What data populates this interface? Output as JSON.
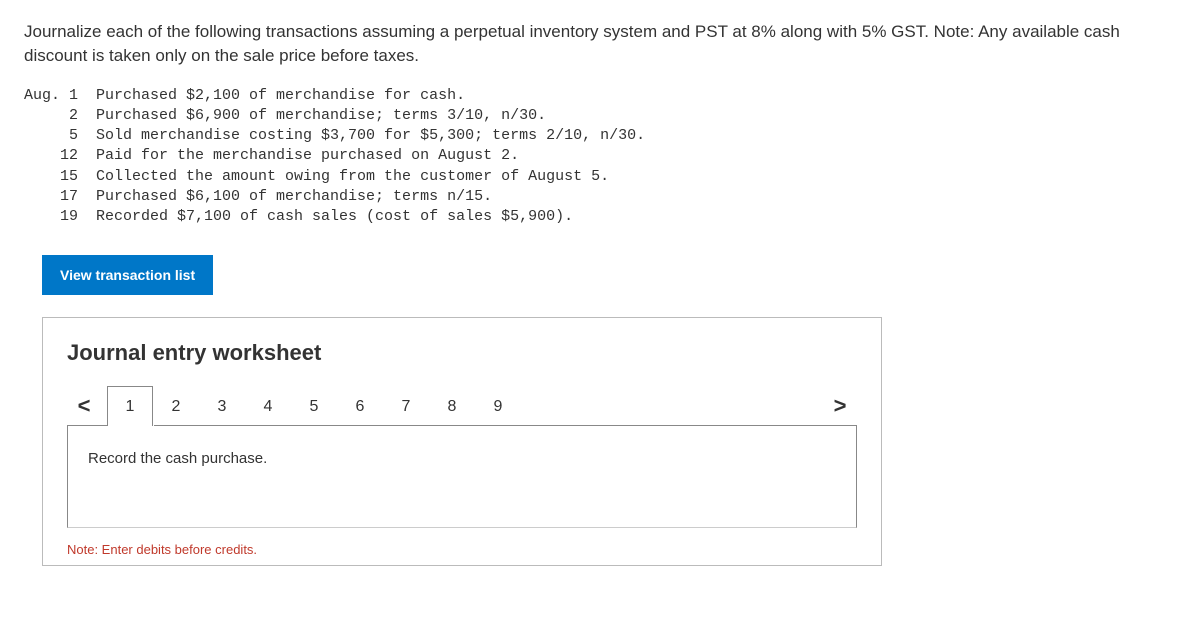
{
  "instructions": "Journalize each of the following transactions assuming a perpetual inventory system and PST at 8% along with 5% GST. Note: Any available cash discount is taken only on the sale price before taxes.",
  "transactions_block": "Aug. 1  Purchased $2,100 of merchandise for cash.\n     2  Purchased $6,900 of merchandise; terms 3/10, n/30.\n     5  Sold merchandise costing $3,700 for $5,300; terms 2/10, n/30.\n    12  Paid for the merchandise purchased on August 2.\n    15  Collected the amount owing from the customer of August 5.\n    17  Purchased $6,100 of merchandise; terms n/15.\n    19  Recorded $7,100 of cash sales (cost of sales $5,900).",
  "view_button_label": "View transaction list",
  "worksheet": {
    "title": "Journal entry worksheet",
    "tabs": [
      "1",
      "2",
      "3",
      "4",
      "5",
      "6",
      "7",
      "8",
      "9"
    ],
    "active_tab_index": 0,
    "prompt": "Record the cash purchase.",
    "note": "Note: Enter debits before credits."
  },
  "chev_left": "<",
  "chev_right": ">"
}
